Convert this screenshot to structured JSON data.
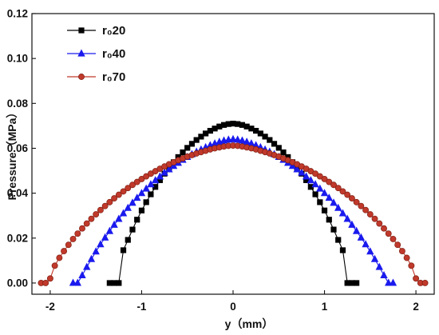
{
  "chart_data": {
    "type": "line",
    "xlabel": "y（mm）",
    "ylabel": "Pressure（MPa）",
    "xlim": [
      -2.2,
      2.2
    ],
    "ylim": [
      -0.005,
      0.12
    ],
    "xticks": [
      -2,
      -1,
      0,
      1,
      2
    ],
    "yticks": [
      0.0,
      0.02,
      0.04,
      0.06,
      0.08,
      0.1,
      0.12
    ],
    "xtick_labels": [
      "-2",
      "-1",
      "0",
      "1",
      "2"
    ],
    "ytick_labels": [
      "0.00",
      "0.02",
      "0.04",
      "0.06",
      "0.08",
      "0.10",
      "0.12"
    ],
    "grid": false,
    "legend_position": "top-left",
    "series": [
      {
        "name": "r₀20",
        "color": "#000000",
        "marker": "square",
        "points": [
          [
            -1.35,
            0.0
          ],
          [
            -1.3,
            0.0
          ],
          [
            -1.25,
            0.0
          ],
          [
            -1.2,
            0.0146
          ],
          [
            -1.15,
            0.0192
          ],
          [
            -1.1,
            0.0238
          ],
          [
            -1.05,
            0.0282
          ],
          [
            -1.0,
            0.0323
          ],
          [
            -0.95,
            0.036
          ],
          [
            -0.9,
            0.0395
          ],
          [
            -0.85,
            0.0428
          ],
          [
            -0.8,
            0.0458
          ],
          [
            -0.75,
            0.0487
          ],
          [
            -0.7,
            0.0513
          ],
          [
            -0.65,
            0.0538
          ],
          [
            -0.6,
            0.0561
          ],
          [
            -0.55,
            0.0582
          ],
          [
            -0.5,
            0.0602
          ],
          [
            -0.45,
            0.062
          ],
          [
            -0.4,
            0.0637
          ],
          [
            -0.35,
            0.0652
          ],
          [
            -0.3,
            0.0666
          ],
          [
            -0.25,
            0.0678
          ],
          [
            -0.2,
            0.0688
          ],
          [
            -0.15,
            0.0697
          ],
          [
            -0.1,
            0.0704
          ],
          [
            -0.05,
            0.0708
          ],
          [
            0.0,
            0.071
          ],
          [
            0.05,
            0.0708
          ],
          [
            0.1,
            0.0704
          ],
          [
            0.15,
            0.0697
          ],
          [
            0.2,
            0.0688
          ],
          [
            0.25,
            0.0678
          ],
          [
            0.3,
            0.0666
          ],
          [
            0.35,
            0.0652
          ],
          [
            0.4,
            0.0637
          ],
          [
            0.45,
            0.062
          ],
          [
            0.5,
            0.0602
          ],
          [
            0.55,
            0.0582
          ],
          [
            0.6,
            0.0561
          ],
          [
            0.65,
            0.0538
          ],
          [
            0.7,
            0.0513
          ],
          [
            0.75,
            0.0487
          ],
          [
            0.8,
            0.0458
          ],
          [
            0.85,
            0.0428
          ],
          [
            0.9,
            0.0395
          ],
          [
            0.95,
            0.036
          ],
          [
            1.0,
            0.0323
          ],
          [
            1.05,
            0.0282
          ],
          [
            1.1,
            0.0238
          ],
          [
            1.15,
            0.0192
          ],
          [
            1.2,
            0.0146
          ],
          [
            1.25,
            0.0
          ],
          [
            1.3,
            0.0
          ],
          [
            1.35,
            0.0
          ]
        ]
      },
      {
        "name": "r₀40",
        "color": "#1a1aee",
        "marker": "triangle",
        "points": [
          [
            -1.75,
            0.0
          ],
          [
            -1.7,
            0.0
          ],
          [
            -1.65,
            0.0034
          ],
          [
            -1.6,
            0.0071
          ],
          [
            -1.55,
            0.0106
          ],
          [
            -1.5,
            0.014
          ],
          [
            -1.45,
            0.0172
          ],
          [
            -1.4,
            0.0202
          ],
          [
            -1.35,
            0.0231
          ],
          [
            -1.3,
            0.0259
          ],
          [
            -1.25,
            0.0285
          ],
          [
            -1.2,
            0.031
          ],
          [
            -1.15,
            0.0334
          ],
          [
            -1.1,
            0.0357
          ],
          [
            -1.05,
            0.0379
          ],
          [
            -1.0,
            0.04
          ],
          [
            -0.95,
            0.042
          ],
          [
            -0.9,
            0.0439
          ],
          [
            -0.85,
            0.0457
          ],
          [
            -0.8,
            0.0474
          ],
          [
            -0.75,
            0.0491
          ],
          [
            -0.7,
            0.0506
          ],
          [
            -0.65,
            0.0521
          ],
          [
            -0.6,
            0.0535
          ],
          [
            -0.55,
            0.0548
          ],
          [
            -0.5,
            0.0561
          ],
          [
            -0.45,
            0.0573
          ],
          [
            -0.4,
            0.0584
          ],
          [
            -0.35,
            0.0594
          ],
          [
            -0.3,
            0.0604
          ],
          [
            -0.25,
            0.0613
          ],
          [
            -0.2,
            0.0621
          ],
          [
            -0.15,
            0.0628
          ],
          [
            -0.1,
            0.0634
          ],
          [
            -0.05,
            0.0638
          ],
          [
            0.0,
            0.064
          ],
          [
            0.05,
            0.0638
          ],
          [
            0.1,
            0.0634
          ],
          [
            0.15,
            0.0628
          ],
          [
            0.2,
            0.0621
          ],
          [
            0.25,
            0.0613
          ],
          [
            0.3,
            0.0604
          ],
          [
            0.35,
            0.0594
          ],
          [
            0.4,
            0.0584
          ],
          [
            0.45,
            0.0573
          ],
          [
            0.5,
            0.0561
          ],
          [
            0.55,
            0.0548
          ],
          [
            0.6,
            0.0535
          ],
          [
            0.65,
            0.0521
          ],
          [
            0.7,
            0.0506
          ],
          [
            0.75,
            0.0491
          ],
          [
            0.8,
            0.0474
          ],
          [
            0.85,
            0.0457
          ],
          [
            0.9,
            0.0439
          ],
          [
            0.95,
            0.042
          ],
          [
            1.0,
            0.04
          ],
          [
            1.05,
            0.0379
          ],
          [
            1.1,
            0.0357
          ],
          [
            1.15,
            0.0334
          ],
          [
            1.2,
            0.031
          ],
          [
            1.25,
            0.0285
          ],
          [
            1.3,
            0.0259
          ],
          [
            1.35,
            0.0231
          ],
          [
            1.4,
            0.0202
          ],
          [
            1.45,
            0.0172
          ],
          [
            1.5,
            0.014
          ],
          [
            1.55,
            0.0106
          ],
          [
            1.6,
            0.0071
          ],
          [
            1.65,
            0.0034
          ],
          [
            1.7,
            0.0
          ],
          [
            1.75,
            0.0
          ]
        ]
      },
      {
        "name": "r₀70",
        "color": "#c0392b",
        "marker": "circle",
        "points": [
          [
            -2.1,
            0.0
          ],
          [
            -2.05,
            0.0
          ],
          [
            -2.0,
            0.002
          ],
          [
            -1.95,
            0.0077
          ],
          [
            -1.9,
            0.0112
          ],
          [
            -1.85,
            0.0142
          ],
          [
            -1.8,
            0.017
          ],
          [
            -1.75,
            0.0196
          ],
          [
            -1.7,
            0.022
          ],
          [
            -1.65,
            0.0243
          ],
          [
            -1.6,
            0.0265
          ],
          [
            -1.55,
            0.0286
          ],
          [
            -1.5,
            0.0306
          ],
          [
            -1.45,
            0.0325
          ],
          [
            -1.4,
            0.0343
          ],
          [
            -1.35,
            0.036
          ],
          [
            -1.3,
            0.0377
          ],
          [
            -1.25,
            0.0393
          ],
          [
            -1.2,
            0.0408
          ],
          [
            -1.15,
            0.0423
          ],
          [
            -1.1,
            0.0437
          ],
          [
            -1.05,
            0.045
          ],
          [
            -1.0,
            0.0463
          ],
          [
            -0.95,
            0.0475
          ],
          [
            -0.9,
            0.0487
          ],
          [
            -0.85,
            0.0498
          ],
          [
            -0.8,
            0.0509
          ],
          [
            -0.75,
            0.0519
          ],
          [
            -0.7,
            0.0529
          ],
          [
            -0.65,
            0.0538
          ],
          [
            -0.6,
            0.0547
          ],
          [
            -0.55,
            0.0555
          ],
          [
            -0.5,
            0.0563
          ],
          [
            -0.45,
            0.057
          ],
          [
            -0.4,
            0.0577
          ],
          [
            -0.35,
            0.0583
          ],
          [
            -0.3,
            0.0589
          ],
          [
            -0.25,
            0.0595
          ],
          [
            -0.2,
            0.06
          ],
          [
            -0.15,
            0.0604
          ],
          [
            -0.1,
            0.0608
          ],
          [
            -0.05,
            0.0611
          ],
          [
            0.0,
            0.0612
          ],
          [
            0.05,
            0.0611
          ],
          [
            0.1,
            0.0608
          ],
          [
            0.15,
            0.0604
          ],
          [
            0.2,
            0.06
          ],
          [
            0.25,
            0.0595
          ],
          [
            0.3,
            0.0589
          ],
          [
            0.35,
            0.0583
          ],
          [
            0.4,
            0.0577
          ],
          [
            0.45,
            0.057
          ],
          [
            0.5,
            0.0563
          ],
          [
            0.55,
            0.0555
          ],
          [
            0.6,
            0.0547
          ],
          [
            0.65,
            0.0538
          ],
          [
            0.7,
            0.0529
          ],
          [
            0.75,
            0.0519
          ],
          [
            0.8,
            0.0509
          ],
          [
            0.85,
            0.0498
          ],
          [
            0.9,
            0.0487
          ],
          [
            0.95,
            0.0475
          ],
          [
            1.0,
            0.0463
          ],
          [
            1.05,
            0.045
          ],
          [
            1.1,
            0.0437
          ],
          [
            1.15,
            0.0423
          ],
          [
            1.2,
            0.0408
          ],
          [
            1.25,
            0.0393
          ],
          [
            1.3,
            0.0377
          ],
          [
            1.35,
            0.036
          ],
          [
            1.4,
            0.0343
          ],
          [
            1.45,
            0.0325
          ],
          [
            1.5,
            0.0306
          ],
          [
            1.55,
            0.0286
          ],
          [
            1.6,
            0.0265
          ],
          [
            1.65,
            0.0243
          ],
          [
            1.7,
            0.022
          ],
          [
            1.75,
            0.0196
          ],
          [
            1.8,
            0.017
          ],
          [
            1.85,
            0.0142
          ],
          [
            1.9,
            0.0112
          ],
          [
            1.95,
            0.0077
          ],
          [
            2.0,
            0.002
          ],
          [
            2.05,
            0.0
          ],
          [
            2.1,
            0.0
          ]
        ]
      }
    ]
  }
}
